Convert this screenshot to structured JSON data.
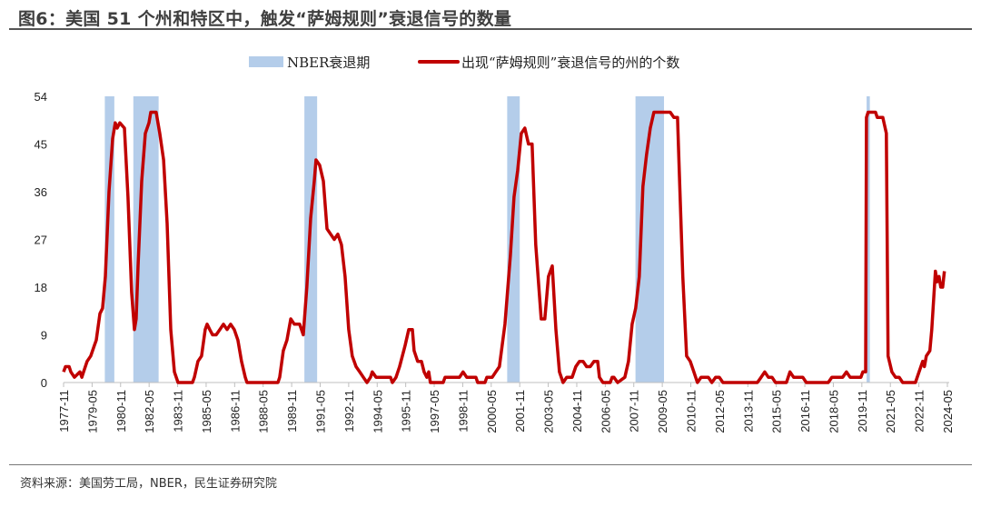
{
  "title": "图6：美国 51 个州和特区中，触发“萨姆规则”衰退信号的数量",
  "source": "资料来源：美国劳工局，NBER，民生证券研究院",
  "chart_data": {
    "type": "line",
    "title": "图6：美国 51 个州和特区中，触发“萨姆规则”衰退信号的数量",
    "xlabel": "",
    "ylabel": "",
    "xlim": [
      1977.83,
      2024.33
    ],
    "ylim": [
      0,
      54
    ],
    "yticks": [
      0,
      9,
      18,
      27,
      36,
      45,
      54
    ],
    "xticks": [
      "1977-11",
      "1979-05",
      "1980-11",
      "1982-05",
      "1983-11",
      "1985-05",
      "1986-11",
      "1988-05",
      "1989-11",
      "1991-05",
      "1992-11",
      "1994-05",
      "1995-11",
      "1997-05",
      "1998-11",
      "2000-05",
      "2001-11",
      "2003-05",
      "2004-11",
      "2006-05",
      "2007-11",
      "2009-05",
      "2010-11",
      "2012-05",
      "2013-11",
      "2015-05",
      "2016-11",
      "2018-05",
      "2019-11",
      "2021-05",
      "2022-11",
      "2024-05"
    ],
    "grid": false,
    "legend_position": "top",
    "colors": {
      "recession": "#b4cdea",
      "line": "#c00000"
    },
    "legend": [
      "NBER衰退期",
      "出现“萨姆规则”衰退信号的州的个数"
    ],
    "recessions": [
      [
        1980.0,
        1980.5
      ],
      [
        1981.5,
        1982.83
      ],
      [
        1990.5,
        1991.17
      ],
      [
        2001.17,
        2001.83
      ],
      [
        2007.92,
        2009.42
      ],
      [
        2020.08,
        2020.25
      ]
    ],
    "series": [
      {
        "name": "出现“萨姆规则”衰退信号的州的个数",
        "points": [
          [
            1977.83,
            2
          ],
          [
            1977.93,
            3
          ],
          [
            1978.12,
            3
          ],
          [
            1978.21,
            2
          ],
          [
            1978.4,
            1
          ],
          [
            1978.69,
            2
          ],
          [
            1978.79,
            1
          ],
          [
            1978.88,
            2
          ],
          [
            1979.07,
            4
          ],
          [
            1979.26,
            5
          ],
          [
            1979.45,
            7
          ],
          [
            1979.55,
            8
          ],
          [
            1979.74,
            13
          ],
          [
            1979.88,
            14
          ],
          [
            1980.03,
            20
          ],
          [
            1980.22,
            36
          ],
          [
            1980.41,
            46
          ],
          [
            1980.55,
            49
          ],
          [
            1980.65,
            48
          ],
          [
            1980.79,
            49
          ],
          [
            1981.03,
            48
          ],
          [
            1981.22,
            35
          ],
          [
            1981.41,
            17
          ],
          [
            1981.56,
            10
          ],
          [
            1981.65,
            12
          ],
          [
            1981.75,
            22
          ],
          [
            1981.94,
            38
          ],
          [
            1982.13,
            47
          ],
          [
            1982.32,
            49
          ],
          [
            1982.42,
            51
          ],
          [
            1982.7,
            51
          ],
          [
            1982.89,
            47
          ],
          [
            1983.09,
            42
          ],
          [
            1983.28,
            30
          ],
          [
            1983.47,
            10
          ],
          [
            1983.66,
            2
          ],
          [
            1983.85,
            0
          ],
          [
            1984.61,
            0
          ],
          [
            1984.71,
            1
          ],
          [
            1984.9,
            4
          ],
          [
            1985.09,
            5
          ],
          [
            1985.28,
            10
          ],
          [
            1985.38,
            11
          ],
          [
            1985.52,
            10
          ],
          [
            1985.67,
            9
          ],
          [
            1985.86,
            9
          ],
          [
            1986.05,
            10
          ],
          [
            1986.24,
            11
          ],
          [
            1986.43,
            10
          ],
          [
            1986.62,
            11
          ],
          [
            1986.81,
            10
          ],
          [
            1987.0,
            8
          ],
          [
            1987.19,
            4
          ],
          [
            1987.39,
            1
          ],
          [
            1987.48,
            0
          ],
          [
            1989.11,
            0
          ],
          [
            1989.2,
            1
          ],
          [
            1989.39,
            6
          ],
          [
            1989.58,
            8
          ],
          [
            1989.78,
            12
          ],
          [
            1989.97,
            11
          ],
          [
            1990.25,
            11
          ],
          [
            1990.44,
            9
          ],
          [
            1990.63,
            18
          ],
          [
            1990.83,
            31
          ],
          [
            1991.02,
            38
          ],
          [
            1991.11,
            42
          ],
          [
            1991.3,
            41
          ],
          [
            1991.5,
            38
          ],
          [
            1991.69,
            29
          ],
          [
            1991.88,
            28
          ],
          [
            1992.07,
            27
          ],
          [
            1992.26,
            28
          ],
          [
            1992.45,
            26
          ],
          [
            1992.64,
            20
          ],
          [
            1992.83,
            10
          ],
          [
            1993.02,
            5
          ],
          [
            1993.22,
            3
          ],
          [
            1993.41,
            2
          ],
          [
            1993.6,
            1
          ],
          [
            1993.79,
            0
          ],
          [
            1993.98,
            1
          ],
          [
            1994.07,
            2
          ],
          [
            1994.27,
            1
          ],
          [
            1995.03,
            1
          ],
          [
            1995.13,
            0
          ],
          [
            1995.32,
            1
          ],
          [
            1995.51,
            3
          ],
          [
            1995.8,
            7
          ],
          [
            1995.99,
            10
          ],
          [
            1996.18,
            10
          ],
          [
            1996.27,
            6
          ],
          [
            1996.46,
            4
          ],
          [
            1996.66,
            4
          ],
          [
            1996.8,
            2
          ],
          [
            1996.94,
            1
          ],
          [
            1997.04,
            2
          ],
          [
            1997.13,
            0
          ],
          [
            1997.8,
            0
          ],
          [
            1997.9,
            1
          ],
          [
            1998.66,
            1
          ],
          [
            1998.85,
            2
          ],
          [
            1999.04,
            1
          ],
          [
            1999.52,
            1
          ],
          [
            1999.62,
            0
          ],
          [
            2000.0,
            0
          ],
          [
            2000.1,
            1
          ],
          [
            2000.38,
            1
          ],
          [
            2000.57,
            2
          ],
          [
            2000.76,
            3
          ],
          [
            2001.05,
            11
          ],
          [
            2001.34,
            24
          ],
          [
            2001.53,
            35
          ],
          [
            2001.72,
            40
          ],
          [
            2001.91,
            47
          ],
          [
            2002.1,
            48
          ],
          [
            2002.29,
            45
          ],
          [
            2002.48,
            45
          ],
          [
            2002.67,
            26
          ],
          [
            2002.96,
            12
          ],
          [
            2003.15,
            12
          ],
          [
            2003.34,
            20
          ],
          [
            2003.54,
            22
          ],
          [
            2003.73,
            10
          ],
          [
            2003.92,
            2
          ],
          [
            2004.11,
            0
          ],
          [
            2004.3,
            1
          ],
          [
            2004.59,
            1
          ],
          [
            2004.78,
            3
          ],
          [
            2004.97,
            4
          ],
          [
            2005.16,
            4
          ],
          [
            2005.35,
            3
          ],
          [
            2005.54,
            3
          ],
          [
            2005.74,
            4
          ],
          [
            2005.93,
            4
          ],
          [
            2006.02,
            1
          ],
          [
            2006.21,
            0
          ],
          [
            2006.59,
            0
          ],
          [
            2006.69,
            1
          ],
          [
            2006.78,
            1
          ],
          [
            2006.98,
            0
          ],
          [
            2007.36,
            1
          ],
          [
            2007.55,
            4
          ],
          [
            2007.74,
            11
          ],
          [
            2007.93,
            14
          ],
          [
            2008.12,
            20
          ],
          [
            2008.31,
            37
          ],
          [
            2008.5,
            43
          ],
          [
            2008.7,
            48
          ],
          [
            2008.89,
            51
          ],
          [
            2009.75,
            51
          ],
          [
            2009.94,
            50
          ],
          [
            2010.13,
            50
          ],
          [
            2010.22,
            40
          ],
          [
            2010.41,
            20
          ],
          [
            2010.61,
            5
          ],
          [
            2010.8,
            4
          ],
          [
            2010.99,
            2
          ],
          [
            2011.18,
            0
          ],
          [
            2011.37,
            1
          ],
          [
            2011.75,
            1
          ],
          [
            2011.94,
            0
          ],
          [
            2012.14,
            1
          ],
          [
            2012.33,
            1
          ],
          [
            2012.52,
            0
          ],
          [
            2014.33,
            0
          ],
          [
            2014.53,
            1
          ],
          [
            2014.72,
            2
          ],
          [
            2014.91,
            1
          ],
          [
            2015.1,
            1
          ],
          [
            2015.29,
            0
          ],
          [
            2015.86,
            0
          ],
          [
            2016.05,
            2
          ],
          [
            2016.24,
            1
          ],
          [
            2016.72,
            1
          ],
          [
            2016.91,
            0
          ],
          [
            2018.06,
            0
          ],
          [
            2018.25,
            1
          ],
          [
            2018.82,
            1
          ],
          [
            2019.02,
            2
          ],
          [
            2019.21,
            1
          ],
          [
            2019.78,
            1
          ],
          [
            2019.88,
            2
          ],
          [
            2020.03,
            2
          ],
          [
            2020.07,
            50
          ],
          [
            2020.16,
            51
          ],
          [
            2020.55,
            51
          ],
          [
            2020.64,
            50
          ],
          [
            2020.93,
            50
          ],
          [
            2021.12,
            47
          ],
          [
            2021.21,
            5
          ],
          [
            2021.41,
            2
          ],
          [
            2021.6,
            1
          ],
          [
            2021.79,
            1
          ],
          [
            2021.98,
            0
          ],
          [
            2022.65,
            0
          ],
          [
            2022.84,
            2
          ],
          [
            2023.03,
            4
          ],
          [
            2023.12,
            3
          ],
          [
            2023.22,
            5
          ],
          [
            2023.41,
            6
          ],
          [
            2023.51,
            10
          ],
          [
            2023.7,
            21
          ],
          [
            2023.79,
            19
          ],
          [
            2023.89,
            20
          ],
          [
            2023.98,
            18
          ],
          [
            2024.08,
            18
          ],
          [
            2024.17,
            21
          ]
        ]
      }
    ]
  }
}
